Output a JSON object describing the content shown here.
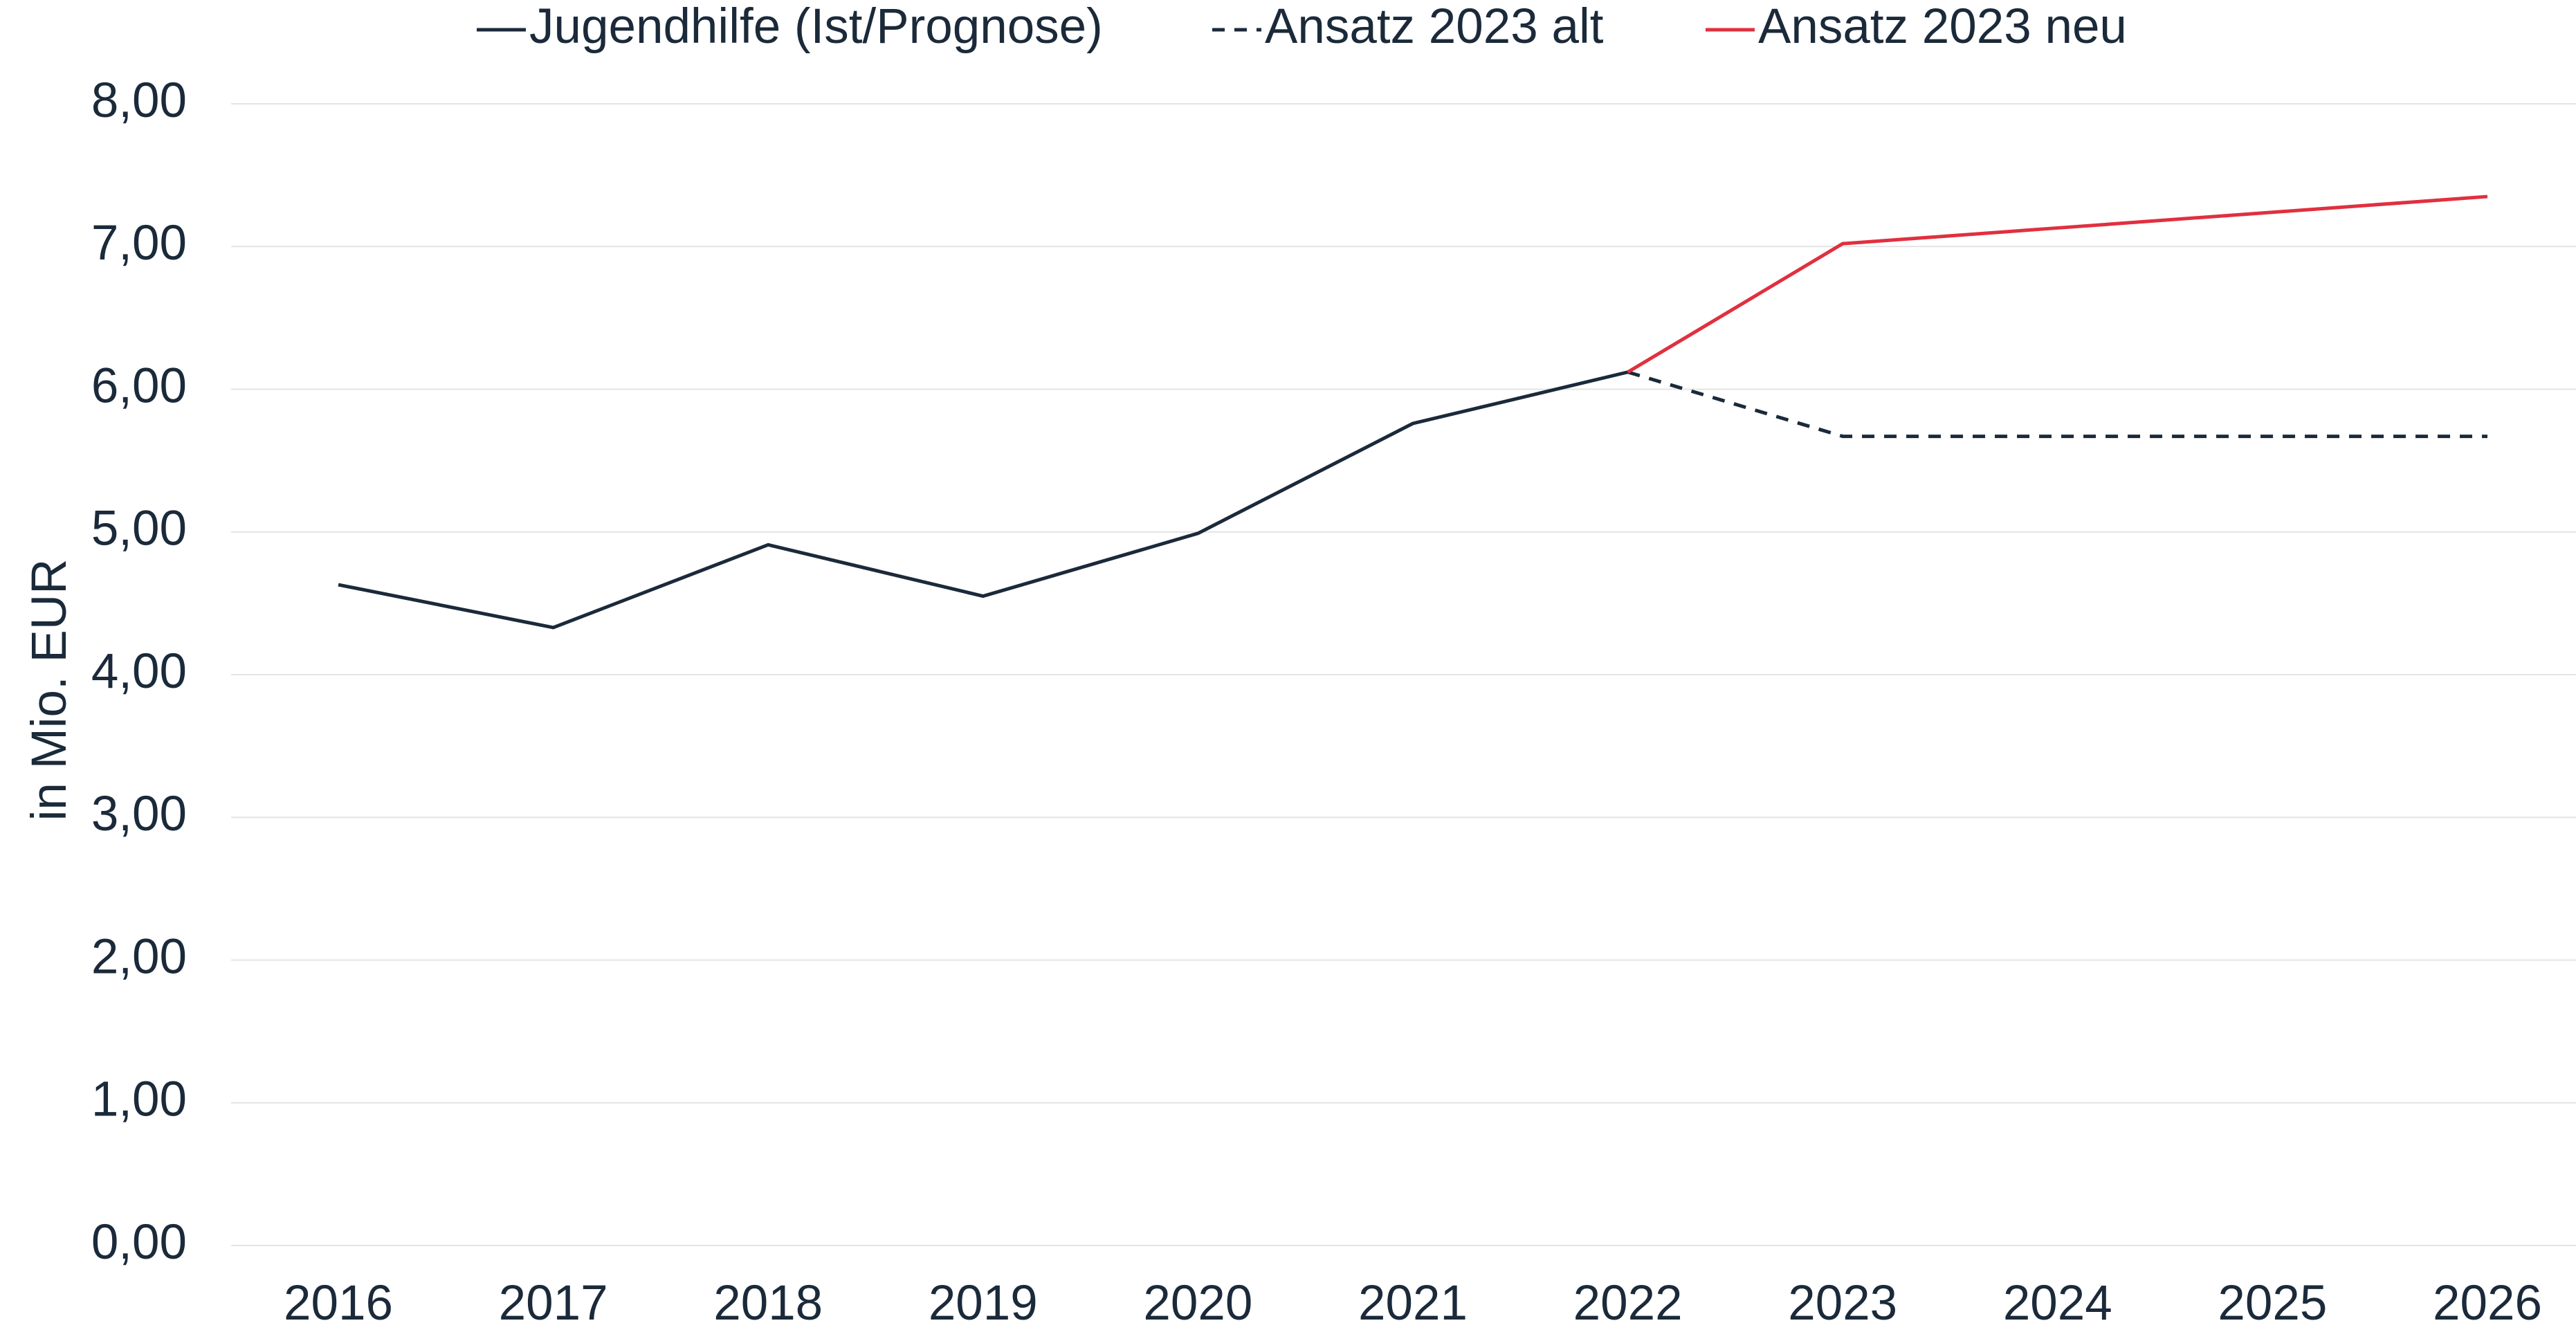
{
  "chart_data": {
    "type": "line",
    "y_label": "in Mio. EUR",
    "categories": [
      "2016",
      "2017",
      "2018",
      "2019",
      "2020",
      "2021",
      "2022",
      "2023",
      "2024",
      "2025",
      "2026"
    ],
    "series": [
      {
        "name": "Jugendhilfe (Ist/Prognose)",
        "color": "#1b2a3a",
        "style": "solid",
        "values": [
          4.63,
          4.33,
          4.91,
          4.55,
          4.99,
          5.76,
          6.12,
          null,
          null,
          null,
          null
        ]
      },
      {
        "name": "Ansatz 2023 alt",
        "color": "#1b2a3a",
        "style": "dashed",
        "values": [
          null,
          null,
          null,
          null,
          null,
          null,
          6.12,
          5.67,
          5.67,
          5.67,
          5.67
        ]
      },
      {
        "name": "Ansatz 2023 neu",
        "color": "#e0303f",
        "style": "solid",
        "values": [
          null,
          null,
          null,
          null,
          null,
          null,
          6.12,
          7.02,
          7.13,
          7.24,
          7.35
        ]
      }
    ],
    "ylim": [
      0,
      8
    ],
    "yticks": [
      {
        "value": 0,
        "label": "0,00"
      },
      {
        "value": 1,
        "label": "1,00"
      },
      {
        "value": 2,
        "label": "2,00"
      },
      {
        "value": 3,
        "label": "3,00"
      },
      {
        "value": 4,
        "label": "4,00"
      },
      {
        "value": 5,
        "label": "5,00"
      },
      {
        "value": 6,
        "label": "6,00"
      },
      {
        "value": 7,
        "label": "7,00"
      },
      {
        "value": 8,
        "label": "8,00"
      }
    ],
    "grid": true,
    "legend": "top"
  }
}
